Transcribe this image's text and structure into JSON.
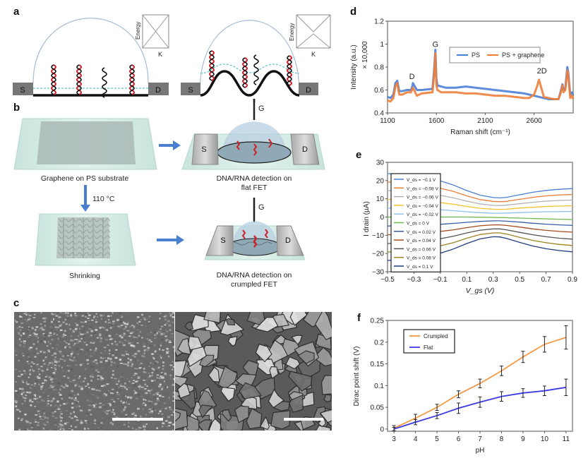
{
  "figure": {
    "panel_labels": {
      "a": "a",
      "b": "b",
      "c": "c",
      "d": "d",
      "e": "e",
      "f": "f"
    },
    "panel_a": {
      "left": {
        "source": "S",
        "drain": "D",
        "energy_label": "Energy",
        "k_label": "K"
      },
      "right": {
        "source": "S",
        "drain": "D",
        "energy_label": "Energy",
        "k_label": "K"
      }
    },
    "panel_b": {
      "gate_label": "G",
      "step1_caption": "Graphene on PS substrate",
      "temperature_label": "110 °C",
      "step2_caption": "Shrinking",
      "flat_fet_caption_line1": "DNA/RNA detection on",
      "flat_fet_caption_line2": "flat FET",
      "crumpled_fet_caption_line1": "DNA/RNA detection on",
      "crumpled_fet_caption_line2": "crumpled FET",
      "source": "S",
      "drain": "D",
      "colors": {
        "arrow": "#4a7fd0",
        "substrate": "#cde6e0",
        "dna": "#d0202a"
      }
    },
    "panel_c": {
      "description": "SEM images of crumpled graphene (low and high magnification) with scale bars"
    }
  },
  "chart_data": [
    {
      "id": "d",
      "type": "line",
      "title": "",
      "xlabel": "Raman shift (cm⁻¹)",
      "ylabel": "Intensity (a.u.)",
      "ylabel_multiplier": "× 10,000",
      "xlim": [
        1100,
        3000
      ],
      "ylim": [
        0.4,
        1.2
      ],
      "xticks": [
        1100,
        1600,
        2100,
        2600
      ],
      "xtick_labels": [
        "1100",
        "1600",
        "2100",
        "2600"
      ],
      "yticks": [
        0.4,
        0.6,
        0.8,
        1.0,
        1.2
      ],
      "ytick_labels": [
        "0.4",
        "0.6",
        "0.8",
        "1",
        "1.2"
      ],
      "legend": {
        "placement": "top-right",
        "entries": [
          "PS",
          "PS + graphene"
        ]
      },
      "annotations": [
        {
          "text": "D",
          "x": 1350,
          "y": 0.67
        },
        {
          "text": "G",
          "x": 1590,
          "y": 0.95
        },
        {
          "text": "2D",
          "x": 2680,
          "y": 0.72
        }
      ],
      "series": [
        {
          "name": "PS",
          "color": "#4a7fd6",
          "x": [
            1100,
            1130,
            1160,
            1180,
            1200,
            1220,
            1250,
            1300,
            1340,
            1350,
            1360,
            1400,
            1450,
            1560,
            1575,
            1590,
            1600,
            1610,
            1650,
            1700,
            1800,
            1900,
            2000,
            2100,
            2200,
            2300,
            2400,
            2500,
            2550,
            2600,
            2650,
            2700,
            2750,
            2800,
            2850,
            2870,
            2890,
            2900,
            2920,
            2940,
            2950,
            2970,
            2990,
            3000
          ],
          "y": [
            0.54,
            0.53,
            0.56,
            0.66,
            0.68,
            0.59,
            0.59,
            0.6,
            0.6,
            0.62,
            0.66,
            0.6,
            0.6,
            0.61,
            0.76,
            0.95,
            0.7,
            0.64,
            0.63,
            0.62,
            0.62,
            0.63,
            0.62,
            0.61,
            0.6,
            0.59,
            0.58,
            0.57,
            0.56,
            0.55,
            0.54,
            0.53,
            0.52,
            0.52,
            0.52,
            0.58,
            0.65,
            0.6,
            0.62,
            0.8,
            0.75,
            0.56,
            0.58,
            0.55
          ]
        },
        {
          "name": "PS + graphene",
          "color": "#ee7d3a",
          "x": [
            1100,
            1130,
            1160,
            1180,
            1200,
            1220,
            1250,
            1300,
            1340,
            1350,
            1360,
            1400,
            1450,
            1560,
            1575,
            1590,
            1600,
            1610,
            1650,
            1700,
            1800,
            1900,
            2000,
            2100,
            2200,
            2300,
            2400,
            2500,
            2550,
            2600,
            2630,
            2650,
            2670,
            2700,
            2750,
            2800,
            2850,
            2870,
            2890,
            2900,
            2920,
            2940,
            2950,
            2970,
            2990,
            3000
          ],
          "y": [
            0.51,
            0.5,
            0.53,
            0.63,
            0.66,
            0.56,
            0.56,
            0.58,
            0.58,
            0.6,
            0.62,
            0.55,
            0.57,
            0.58,
            0.72,
            0.92,
            0.65,
            0.6,
            0.58,
            0.58,
            0.58,
            0.57,
            0.57,
            0.56,
            0.55,
            0.55,
            0.54,
            0.53,
            0.53,
            0.56,
            0.63,
            0.69,
            0.63,
            0.54,
            0.53,
            0.52,
            0.52,
            0.57,
            0.64,
            0.58,
            0.6,
            0.77,
            0.73,
            0.53,
            0.55,
            0.52
          ]
        }
      ]
    },
    {
      "id": "e",
      "type": "line",
      "title": "",
      "xlabel": "V_gs (V)",
      "ylabel": "I drain (µA)",
      "xlim": [
        -0.5,
        0.9
      ],
      "ylim": [
        -30,
        30
      ],
      "xticks": [
        -0.5,
        -0.3,
        -0.1,
        0.1,
        0.3,
        0.5,
        0.7,
        0.9
      ],
      "xtick_labels": [
        "−0.5",
        "−0.3",
        "−0.1",
        "0.1",
        "0.3",
        "0.5",
        "0.7",
        "0.9"
      ],
      "yticks": [
        -30,
        -20,
        -10,
        0,
        10,
        20,
        30
      ],
      "ytick_labels": [
        "−30",
        "−20",
        "−10",
        "0",
        "10",
        "20",
        "30"
      ],
      "legend": {
        "placement": "left"
      },
      "x": [
        -0.5,
        -0.4,
        -0.3,
        -0.2,
        -0.1,
        0,
        0.1,
        0.2,
        0.3,
        0.35,
        0.4,
        0.5,
        0.6,
        0.7,
        0.8,
        0.9
      ],
      "series": [
        {
          "name": "V_ds = −0.1 V",
          "color": "#4a7fd6",
          "y": [
            23.8,
            23.5,
            22.5,
            21.3,
            19.8,
            17.5,
            14.5,
            12,
            10.7,
            10.5,
            10.8,
            12.2,
            13.6,
            14.6,
            15.2,
            15.6
          ]
        },
        {
          "name": "V_ds = −0.08 V",
          "color": "#ee7d3a",
          "y": [
            19.2,
            18.9,
            18.0,
            17.0,
            15.8,
            14.0,
            11.6,
            9.6,
            8.6,
            8.4,
            8.6,
            9.7,
            10.8,
            11.6,
            12.1,
            12.4
          ]
        },
        {
          "name": "V_ds = −0.06 V",
          "color": "#b0b0b0",
          "y": [
            14.5,
            14.2,
            13.6,
            12.8,
            11.9,
            10.5,
            8.7,
            7.2,
            6.4,
            6.3,
            6.5,
            7.3,
            8.1,
            8.7,
            9.1,
            9.3
          ]
        },
        {
          "name": "V_ds = −0.04 V",
          "color": "#f3c12c",
          "y": [
            9.7,
            9.5,
            9.1,
            8.6,
            7.9,
            7.0,
            5.8,
            4.8,
            4.3,
            4.2,
            4.3,
            4.9,
            5.4,
            5.8,
            6.0,
            6.2
          ]
        },
        {
          "name": "V_ds = −0.02 V",
          "color": "#8fc0ea",
          "y": [
            4.9,
            4.8,
            4.6,
            4.3,
            4.0,
            3.5,
            2.9,
            2.4,
            2.1,
            2.1,
            2.2,
            2.4,
            2.7,
            2.9,
            3.0,
            3.1
          ]
        },
        {
          "name": "V_ds = 0 V",
          "color": "#6cb84a",
          "y": [
            0,
            0,
            0,
            0,
            0,
            0,
            0,
            -0.1,
            -0.2,
            -0.3,
            -0.4,
            -0.6,
            -0.8,
            -1.0,
            -1.2,
            -1.4
          ]
        },
        {
          "name": "V_ds = 0.02 V",
          "color": "#3b5ea8",
          "y": [
            -4.9,
            -4.8,
            -4.6,
            -4.3,
            -4.0,
            -3.5,
            -2.9,
            -2.4,
            -2.1,
            -2.1,
            -2.3,
            -2.8,
            -3.4,
            -3.9,
            -4.3,
            -4.6
          ]
        },
        {
          "name": "V_ds = 0.04 V",
          "color": "#a64b1c",
          "y": [
            -9.7,
            -9.5,
            -9.1,
            -8.6,
            -7.9,
            -7.0,
            -5.8,
            -4.8,
            -4.3,
            -4.3,
            -4.6,
            -5.5,
            -6.5,
            -7.3,
            -7.9,
            -8.3
          ]
        },
        {
          "name": "V_ds = 0.06 V",
          "color": "#555555",
          "y": [
            -14.5,
            -14.2,
            -13.6,
            -12.8,
            -11.9,
            -10.5,
            -8.7,
            -7.2,
            -6.5,
            -6.5,
            -7.0,
            -8.4,
            -9.7,
            -10.8,
            -11.6,
            -12.1
          ]
        },
        {
          "name": "V_ds = 0.08 V",
          "color": "#9c8420",
          "y": [
            -19.2,
            -18.9,
            -18.0,
            -17.0,
            -15.8,
            -14.0,
            -11.6,
            -9.6,
            -8.7,
            -8.7,
            -9.3,
            -11.1,
            -12.8,
            -14.1,
            -15.0,
            -15.6
          ]
        },
        {
          "name": "V_ds = 0.1 V",
          "color": "#1f3e7a",
          "y": [
            -23.8,
            -23.5,
            -22.5,
            -21.3,
            -19.8,
            -17.5,
            -14.5,
            -12,
            -10.8,
            -10.9,
            -11.7,
            -13.9,
            -15.9,
            -17.4,
            -18.4,
            -19.1
          ]
        }
      ]
    },
    {
      "id": "f",
      "type": "line",
      "title": "",
      "xlabel": "pH",
      "ylabel": "Dirac point shift (V)",
      "xlim": [
        2.7,
        11.3
      ],
      "ylim": [
        -0.005,
        0.25
      ],
      "xticks": [
        3,
        4,
        5,
        6,
        7,
        8,
        9,
        10,
        11
      ],
      "xtick_labels": [
        "3",
        "4",
        "5",
        "6",
        "7",
        "8",
        "9",
        "10",
        "11"
      ],
      "yticks": [
        0,
        0.05,
        0.1,
        0.15,
        0.2,
        0.25
      ],
      "ytick_labels": [
        "0",
        "0.05",
        "0.1",
        "0.15",
        "0.2",
        "0.25"
      ],
      "legend": {
        "placement": "top-left",
        "entries": [
          "Crumpled",
          "Flat"
        ]
      },
      "x": [
        3,
        4,
        5,
        6,
        7,
        8,
        9,
        10,
        11
      ],
      "series": [
        {
          "name": "Crumpled",
          "color": "#f59a45",
          "y": [
            0.002,
            0.025,
            0.05,
            0.08,
            0.105,
            0.134,
            0.166,
            0.195,
            0.211
          ],
          "err": [
            0.006,
            0.009,
            0.007,
            0.008,
            0.01,
            0.011,
            0.013,
            0.018,
            0.027
          ]
        },
        {
          "name": "Flat",
          "color": "#3a3ae6",
          "y": [
            0,
            0.016,
            0.031,
            0.048,
            0.062,
            0.075,
            0.083,
            0.088,
            0.096
          ],
          "err": [
            0.004,
            0.006,
            0.007,
            0.012,
            0.012,
            0.011,
            0.01,
            0.011,
            0.019
          ]
        }
      ]
    }
  ]
}
